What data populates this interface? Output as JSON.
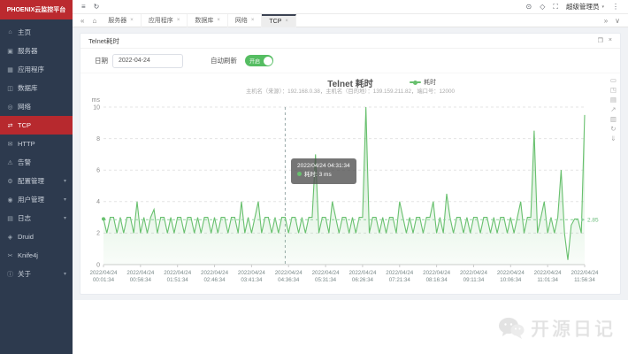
{
  "sidebar": {
    "logo": "PHOENIX云监控平台",
    "items": [
      {
        "id": "home",
        "label": "主页",
        "icon": "home-icon",
        "glyph": "⌂",
        "active": false,
        "arrow": false
      },
      {
        "id": "server",
        "label": "服务器",
        "icon": "server-icon",
        "glyph": "▣",
        "active": false,
        "arrow": false
      },
      {
        "id": "app",
        "label": "应用程序",
        "icon": "app-icon",
        "glyph": "▦",
        "active": false,
        "arrow": false
      },
      {
        "id": "db",
        "label": "数据库",
        "icon": "database-icon",
        "glyph": "◫",
        "active": false,
        "arrow": false
      },
      {
        "id": "network",
        "label": "网络",
        "icon": "network-icon",
        "glyph": "◎",
        "active": false,
        "arrow": false
      },
      {
        "id": "tcp",
        "label": "TCP",
        "icon": "tcp-icon",
        "glyph": "⇄",
        "active": true,
        "arrow": false
      },
      {
        "id": "http",
        "label": "HTTP",
        "icon": "http-icon",
        "glyph": "✉",
        "active": false,
        "arrow": false
      },
      {
        "id": "alarm",
        "label": "告警",
        "icon": "alarm-icon",
        "glyph": "⚠",
        "active": false,
        "arrow": false
      },
      {
        "id": "config",
        "label": "配置管理",
        "icon": "gear-icon",
        "glyph": "⚙",
        "active": false,
        "arrow": true
      },
      {
        "id": "users",
        "label": "用户管理",
        "icon": "user-icon",
        "glyph": "◉",
        "active": false,
        "arrow": true
      },
      {
        "id": "logs",
        "label": "日志",
        "icon": "log-icon",
        "glyph": "▤",
        "active": false,
        "arrow": true
      },
      {
        "id": "druid",
        "label": "Druid",
        "icon": "druid-icon",
        "glyph": "◈",
        "active": false,
        "arrow": false
      },
      {
        "id": "knife4j",
        "label": "Knife4j",
        "icon": "knife4j-icon",
        "glyph": "✂",
        "active": false,
        "arrow": false
      },
      {
        "id": "about",
        "label": "关于",
        "icon": "about-icon",
        "glyph": "ⓘ",
        "active": false,
        "arrow": true
      }
    ]
  },
  "topbar": {
    "hamburger_glyph": "≡",
    "refresh_glyph": "↻",
    "right_icons": [
      {
        "name": "screen-icon",
        "glyph": "⊙"
      },
      {
        "name": "message-icon",
        "glyph": "◇"
      },
      {
        "name": "fullscreen-icon",
        "glyph": "⛶"
      }
    ],
    "user": "超级管理员",
    "caret_glyph": "▾",
    "more_glyph": "⋮"
  },
  "tabbar": {
    "collapse_glyph": "«",
    "home_glyph": "⌂",
    "overflow_glyph": "»",
    "dropdown_glyph": "∨",
    "close_glyph": "×",
    "tabs": [
      {
        "label": "服务器",
        "active": false
      },
      {
        "label": "应用程序",
        "active": false
      },
      {
        "label": "数据库",
        "active": false
      },
      {
        "label": "网络",
        "active": false
      },
      {
        "label": "TCP",
        "active": true
      }
    ]
  },
  "panel": {
    "title": "Telnet耗时",
    "float_glyph": "❐",
    "close_glyph": "×",
    "date_label": "日期",
    "date_value": "2022-04-24",
    "auto_refresh_label": "自动刷新",
    "toggle_on_text": "开启"
  },
  "chart_data": {
    "type": "area",
    "title": "Telnet 耗时",
    "subtitle": "主机名（来源）：192.168.0.38，主机名（目的地）：139.159.211.82，端口号：12000",
    "legend": [
      "耗时"
    ],
    "unit": "ms",
    "ylim": [
      0,
      10
    ],
    "yticks": [
      0,
      2,
      4,
      6,
      8,
      10
    ],
    "grid": "dashed-horizontal",
    "legend_position": "top-right-of-title",
    "line_color": "#68c06e",
    "average": 2.85,
    "average_label": "2.85",
    "pointer_index": 54,
    "x_labels": [
      "2022/04/24 00:01:34",
      "2022/04/24 00:56:34",
      "2022/04/24 01:51:34",
      "2022/04/24 02:46:34",
      "2022/04/24 03:41:34",
      "2022/04/24 04:36:34",
      "2022/04/24 05:31:34",
      "2022/04/24 06:26:34",
      "2022/04/24 07:21:34",
      "2022/04/24 08:16:34",
      "2022/04/24 09:11:34",
      "2022/04/24 10:06:34",
      "2022/04/24 11:01:34",
      "2022/04/24 11:56:34"
    ],
    "values": [
      2.9,
      2,
      3,
      3,
      2,
      3,
      2,
      3,
      3,
      2,
      4,
      2,
      3,
      2,
      3,
      3.5,
      2,
      3,
      3,
      2,
      3,
      2,
      3,
      3,
      2,
      3,
      3,
      2,
      3,
      2,
      3,
      3,
      2,
      3,
      2,
      3,
      3,
      2,
      3,
      3,
      2,
      4,
      2,
      3,
      2,
      3,
      4,
      2,
      3,
      3,
      2,
      3,
      2,
      3,
      3,
      2,
      3,
      3,
      2,
      3,
      2,
      3,
      3,
      7,
      2,
      3,
      3,
      2,
      4,
      3,
      2,
      3,
      3,
      2,
      3,
      2,
      3,
      3,
      10,
      2,
      3,
      3,
      2,
      3,
      2,
      3,
      3,
      2,
      4,
      3,
      2,
      3,
      2,
      3,
      3,
      2,
      3,
      3,
      4,
      2,
      3,
      2,
      4.5,
      3,
      2,
      3,
      3,
      2,
      3,
      2,
      3,
      3,
      2,
      3,
      3,
      2,
      3,
      2,
      3,
      3,
      2,
      3,
      2,
      3,
      4,
      2,
      3,
      3,
      8.5,
      2,
      3,
      4,
      2,
      3,
      2,
      3,
      6,
      2,
      0.3,
      2.5,
      2.9,
      2.9,
      2,
      9.5
    ],
    "toolbox": [
      {
        "name": "zoom-select-icon",
        "glyph": "▭"
      },
      {
        "name": "zoom-reset-icon",
        "glyph": "◳"
      },
      {
        "name": "data-view-icon",
        "glyph": "▤"
      },
      {
        "name": "line-chart-icon",
        "glyph": "↗"
      },
      {
        "name": "bar-chart-icon",
        "glyph": "▥"
      },
      {
        "name": "restore-icon",
        "glyph": "↻"
      },
      {
        "name": "save-image-icon",
        "glyph": "⇓"
      }
    ]
  },
  "tooltip": {
    "time": "2022/04/24 04:31:34",
    "series_line": "耗时: 3 ms"
  },
  "watermark": {
    "text": "开源日记"
  }
}
